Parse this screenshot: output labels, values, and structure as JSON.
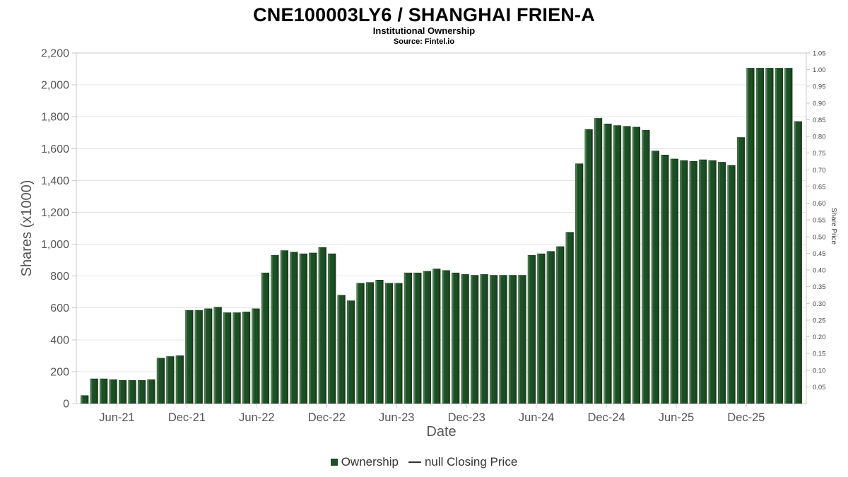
{
  "header": {
    "title": "CNE100003LY6 / SHANGHAI FRIEN-A",
    "subtitle": "Institutional Ownership",
    "source": "Source: Fintel.io"
  },
  "axes": {
    "x_title": "Date",
    "y_left_title": "Shares (x1000)",
    "y_right_title": "Share Price"
  },
  "legend": {
    "ownership_label": "Ownership",
    "closing_price_label": "null Closing Price"
  },
  "colors": {
    "bar": "#1d4f24",
    "bar_highlight": "#6b9a70",
    "bar_dark": "#143a19",
    "grid": "#e4e4e4",
    "axis": "#c9c9c9",
    "tick_text": "#555555",
    "right_tick_text": "#444444"
  },
  "chart_data": {
    "type": "bar",
    "title": "CNE100003LY6 / SHANGHAI FRIEN-A",
    "subtitle": "Institutional Ownership",
    "source": "Source: Fintel.io",
    "xlabel": "Date",
    "ylabel_left": "Shares (x1000)",
    "ylabel_right": "Share Price",
    "ylim_left": [
      0,
      2200
    ],
    "ytick_step_left": 200,
    "ylim_right": [
      0,
      1.05
    ],
    "ytick_step_right": 0.05,
    "grid": true,
    "legend_position": "bottom",
    "x_tick_labels": [
      "Jun-21",
      "Dec-21",
      "Jun-22",
      "Dec-22",
      "Jun-23",
      "Dec-23",
      "Jun-24",
      "Dec-24",
      "Jun-25",
      "Dec-25"
    ],
    "x_ticks": [
      {
        "label": "Jun-21",
        "index": 3.4
      },
      {
        "label": "Dec-21",
        "index": 10.75
      },
      {
        "label": "Jun-22",
        "index": 18.1
      },
      {
        "label": "Dec-22",
        "index": 25.45
      },
      {
        "label": "Jun-23",
        "index": 32.8
      },
      {
        "label": "Dec-23",
        "index": 40.15
      },
      {
        "label": "Jun-24",
        "index": 47.5
      },
      {
        "label": "Dec-24",
        "index": 54.85
      },
      {
        "label": "Jun-25",
        "index": 62.2
      },
      {
        "label": "Dec-25",
        "index": 69.55
      }
    ],
    "series": [
      {
        "name": "Ownership",
        "type": "column",
        "color": "#1d4f24",
        "units": "shares x1000",
        "values": [
          50,
          155,
          155,
          150,
          145,
          145,
          145,
          150,
          285,
          295,
          300,
          585,
          585,
          595,
          605,
          570,
          570,
          575,
          595,
          820,
          930,
          960,
          950,
          940,
          945,
          980,
          940,
          680,
          645,
          755,
          760,
          775,
          755,
          755,
          820,
          820,
          830,
          845,
          835,
          820,
          810,
          805,
          810,
          805,
          805,
          805,
          805,
          930,
          940,
          955,
          985,
          1075,
          1505,
          1720,
          1790,
          1755,
          1745,
          1740,
          1735,
          1715,
          1585,
          1560,
          1535,
          1525,
          1520,
          1530,
          1525,
          1515,
          1495,
          1670,
          2105,
          2105,
          2105,
          2105,
          2105,
          1770
        ]
      },
      {
        "name": "null Closing Price",
        "type": "line",
        "values": []
      }
    ]
  }
}
